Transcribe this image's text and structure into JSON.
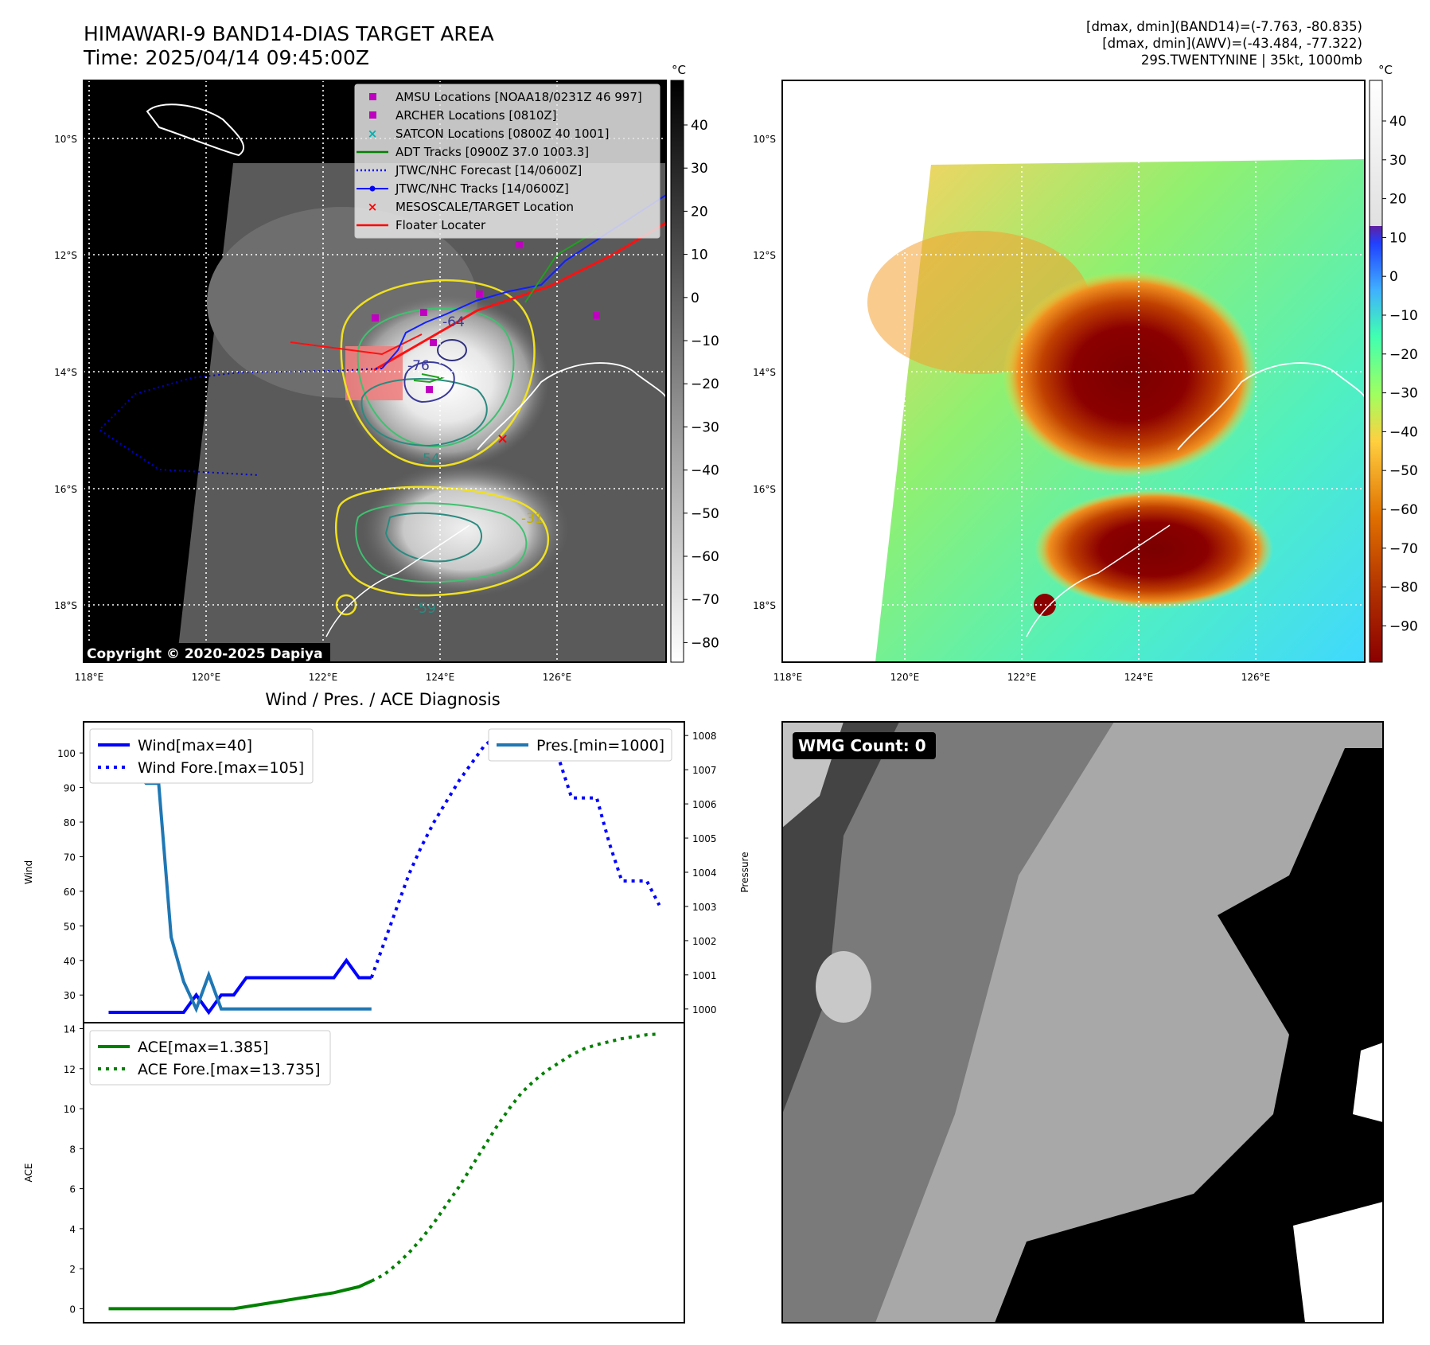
{
  "header": {
    "title": "HIMAWARI-9 BAND14-DIAS TARGET AREA",
    "time": "Time: 2025/04/14 09:45:00Z",
    "dmax_band14": "[dmax, dmin](BAND14)=(-7.763, -80.835)",
    "dmax_awv": "[dmax, dmin](AWV)=(-43.484, -77.322)",
    "storm": "29S.TWENTYNINE | 35kt, 1000mb"
  },
  "map": {
    "lat_labels": [
      "10°S",
      "12°S",
      "14°S",
      "16°S",
      "18°S"
    ],
    "lon_labels": [
      "118°E",
      "120°E",
      "122°E",
      "124°E",
      "126°E"
    ],
    "copyright": "Copyright © 2020-2025 Dapiya",
    "contour_labels": [
      "-76",
      "-54",
      "-31",
      "-59",
      "-64"
    ],
    "legend": [
      {
        "label": "AMSU Locations [NOAA18/0231Z 46 997]",
        "color": "#c000c0",
        "marker": "square"
      },
      {
        "label": "ARCHER Locations [0810Z]",
        "color": "#c000c0",
        "marker": "square"
      },
      {
        "label": "SATCON Locations [0800Z 40 1001]",
        "color": "#00b0b0",
        "marker": "x"
      },
      {
        "label": "ADT Tracks [0900Z 37.0 1003.3]",
        "color": "#008000",
        "marker": "line"
      },
      {
        "label": "JTWC/NHC Forecast [14/0600Z]",
        "color": "#0000ff",
        "marker": "dotted"
      },
      {
        "label": "JTWC/NHC Tracks [14/0600Z]",
        "color": "#0000ff",
        "marker": "line-dot"
      },
      {
        "label": "MESOSCALE/TARGET Location",
        "color": "#ff0000",
        "marker": "x"
      },
      {
        "label": "Floater Locater",
        "color": "#ff0000",
        "marker": "line"
      }
    ]
  },
  "colorbar_gray": {
    "unit": "°C",
    "ticks": [
      "40",
      "30",
      "20",
      "10",
      "0",
      "−10",
      "−20",
      "−30",
      "−40",
      "−50",
      "−60",
      "−70",
      "−80"
    ]
  },
  "colorbar_color": {
    "unit": "°C",
    "ticks": [
      "40",
      "30",
      "20",
      "10",
      "0",
      "−10",
      "−20",
      "−30",
      "−40",
      "−50",
      "−60",
      "−70",
      "−80",
      "−90"
    ]
  },
  "wmg": {
    "label": "WMG Count: 0"
  },
  "chart_data": [
    {
      "type": "line",
      "title": "Wind / Pres. / ACE Diagnosis",
      "ylabel": "Wind",
      "ylabel_right": "Pressure",
      "ylim": [
        22,
        109
      ],
      "ylim_right": [
        999.6,
        1008.4
      ],
      "yticks": [
        30,
        40,
        50,
        60,
        70,
        80,
        90,
        100
      ],
      "yticks_right": [
        1000,
        1001,
        1002,
        1003,
        1004,
        1005,
        1006,
        1007,
        1008
      ],
      "x": [
        0,
        1,
        2,
        3,
        4,
        5,
        6,
        7,
        8,
        9,
        10,
        11,
        12,
        13,
        14,
        15,
        16,
        17,
        18,
        19,
        20,
        21,
        22,
        23,
        24,
        25,
        26,
        27,
        28,
        29,
        30,
        31,
        32,
        33,
        34,
        35,
        36,
        37,
        38,
        39,
        40,
        41,
        42,
        43,
        44
      ],
      "series": [
        {
          "name": "Wind[max=40]",
          "color": "#0000ff",
          "style": "solid",
          "axis": "left",
          "points": [
            [
              0,
              25
            ],
            [
              1,
              25
            ],
            [
              2,
              25
            ],
            [
              3,
              25
            ],
            [
              4,
              25
            ],
            [
              5,
              25
            ],
            [
              6,
              25
            ],
            [
              7,
              30
            ],
            [
              8,
              25
            ],
            [
              9,
              30
            ],
            [
              10,
              30
            ],
            [
              11,
              35
            ],
            [
              12,
              35
            ],
            [
              13,
              35
            ],
            [
              14,
              35
            ],
            [
              15,
              35
            ],
            [
              16,
              35
            ],
            [
              17,
              35
            ],
            [
              18,
              35
            ],
            [
              19,
              40
            ],
            [
              20,
              35
            ],
            [
              21,
              35
            ]
          ]
        },
        {
          "name": "Wind Fore.[max=105]",
          "color": "#0000ff",
          "style": "dotted",
          "axis": "left",
          "points": [
            [
              21,
              35
            ],
            [
              22,
              45
            ],
            [
              23,
              55
            ],
            [
              24,
              65
            ],
            [
              25,
              73
            ],
            [
              26,
              80
            ],
            [
              27,
              86
            ],
            [
              28,
              92
            ],
            [
              29,
              97
            ],
            [
              30,
              102
            ],
            [
              31,
              105
            ],
            [
              32,
              102
            ],
            [
              33,
              102
            ],
            [
              34,
              102
            ],
            [
              35,
              102
            ],
            [
              36,
              98
            ],
            [
              37,
              87
            ],
            [
              38,
              87
            ],
            [
              39,
              87
            ],
            [
              40,
              74
            ],
            [
              41,
              63
            ],
            [
              42,
              63
            ],
            [
              43,
              63
            ],
            [
              44,
              56
            ]
          ]
        },
        {
          "name": "Pres.[min=1000]",
          "color": "#1f77b4",
          "style": "solid",
          "axis": "right",
          "points": [
            [
              0,
              1008
            ],
            [
              1,
              1007
            ],
            [
              2,
              1007
            ],
            [
              3,
              1006.6
            ],
            [
              4,
              1006.6
            ],
            [
              5,
              1002.1
            ],
            [
              6,
              1000.8
            ],
            [
              7,
              1000
            ],
            [
              8,
              1001
            ],
            [
              9,
              1000
            ],
            [
              10,
              1000
            ],
            [
              11,
              1000
            ],
            [
              12,
              1000
            ],
            [
              13,
              1000
            ],
            [
              14,
              1000
            ],
            [
              15,
              1000
            ],
            [
              16,
              1000
            ],
            [
              17,
              1000
            ],
            [
              18,
              1000
            ],
            [
              19,
              1000
            ],
            [
              20,
              1000
            ],
            [
              21,
              1000
            ]
          ]
        }
      ]
    },
    {
      "type": "line",
      "ylabel": "ACE",
      "ylim": [
        -0.7,
        14.3
      ],
      "yticks": [
        0,
        2,
        4,
        6,
        8,
        10,
        12,
        14
      ],
      "x": [
        0,
        1,
        2,
        3,
        4,
        5,
        6,
        7,
        8,
        9,
        10,
        11,
        12,
        13,
        14,
        15,
        16,
        17,
        18,
        19,
        20,
        21,
        22,
        23,
        24,
        25,
        26,
        27,
        28,
        29,
        30,
        31,
        32,
        33,
        34,
        35,
        36,
        37,
        38,
        39,
        40,
        41,
        42,
        43,
        44
      ],
      "series": [
        {
          "name": "ACE[max=1.385]",
          "color": "#008000",
          "style": "solid",
          "points": [
            [
              0,
              0
            ],
            [
              1,
              0
            ],
            [
              2,
              0
            ],
            [
              3,
              0
            ],
            [
              4,
              0
            ],
            [
              5,
              0
            ],
            [
              6,
              0
            ],
            [
              7,
              0
            ],
            [
              8,
              0
            ],
            [
              9,
              0
            ],
            [
              10,
              0
            ],
            [
              11,
              0.1
            ],
            [
              12,
              0.2
            ],
            [
              13,
              0.3
            ],
            [
              14,
              0.4
            ],
            [
              15,
              0.5
            ],
            [
              16,
              0.6
            ],
            [
              17,
              0.7
            ],
            [
              18,
              0.8
            ],
            [
              19,
              0.95
            ],
            [
              20,
              1.1
            ],
            [
              21,
              1.385
            ]
          ]
        },
        {
          "name": "ACE Fore.[max=13.735]",
          "color": "#008000",
          "style": "dotted",
          "points": [
            [
              21,
              1.385
            ],
            [
              22,
              1.7
            ],
            [
              23,
              2.2
            ],
            [
              24,
              2.8
            ],
            [
              25,
              3.5
            ],
            [
              26,
              4.3
            ],
            [
              27,
              5.2
            ],
            [
              28,
              6.1
            ],
            [
              29,
              7.1
            ],
            [
              30,
              8.1
            ],
            [
              31,
              9.1
            ],
            [
              32,
              10.0
            ],
            [
              33,
              10.8
            ],
            [
              34,
              11.4
            ],
            [
              35,
              11.9
            ],
            [
              36,
              12.3
            ],
            [
              37,
              12.7
            ],
            [
              38,
              13.0
            ],
            [
              39,
              13.2
            ],
            [
              40,
              13.35
            ],
            [
              41,
              13.5
            ],
            [
              42,
              13.6
            ],
            [
              43,
              13.7
            ],
            [
              44,
              13.735
            ]
          ]
        }
      ]
    }
  ]
}
